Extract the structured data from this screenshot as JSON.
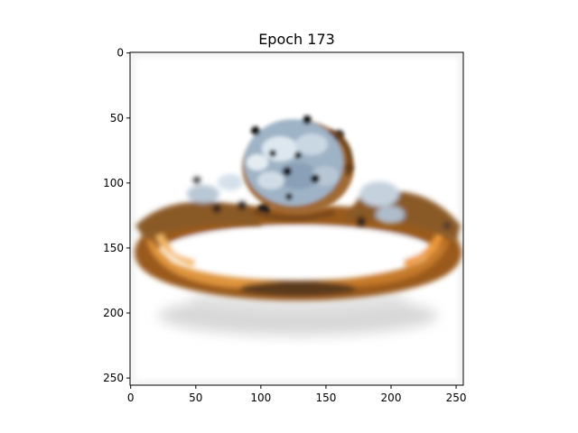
{
  "chart_data": {
    "type": "image",
    "title": "Epoch 173",
    "xlabel": "",
    "ylabel": "",
    "xlim": [
      -0.5,
      255.5
    ],
    "ylim": [
      255.5,
      -0.5
    ],
    "xticks": [
      0,
      50,
      100,
      150,
      200,
      250
    ],
    "yticks": [
      0,
      50,
      100,
      150,
      200,
      250
    ],
    "grid": false,
    "image_content": "blurry generated image of a gold engagement ring with a cluster of blue-white diamonds on a white background"
  },
  "colors": {
    "gold_light": "#e6a24e",
    "gold_dark": "#8a4a12",
    "diamond_light": "#c9d7e3",
    "diamond_blue": "#7d93ad",
    "stone_dark": "#1b1b1b",
    "shadow": "#d9d9d9"
  }
}
